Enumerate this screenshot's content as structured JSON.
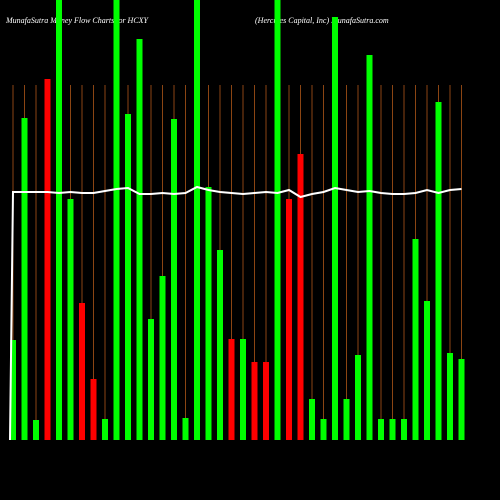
{
  "chart_data": {
    "type": "bar",
    "title": "MunafaSutra  Money Flow  Charts for HCXY",
    "subtitle": "(Hercules Capital,  Inc) MunafaSutra.com",
    "categories": [
      null,
      null,
      null,
      null,
      null,
      null,
      null,
      null,
      null,
      null,
      null,
      null,
      null,
      null,
      null,
      null,
      null,
      null,
      null,
      null,
      null,
      null,
      null,
      null,
      null,
      null,
      null,
      null,
      null,
      null,
      null,
      null,
      null,
      null,
      null,
      null,
      null,
      null,
      null,
      null
    ],
    "values": [
      100,
      322,
      20,
      361,
      440,
      241,
      137,
      61,
      21,
      440,
      326,
      401,
      121,
      164,
      321,
      22,
      440,
      253,
      190,
      101,
      101,
      78,
      78,
      440,
      241,
      286,
      41,
      21,
      423,
      41,
      85,
      385,
      21,
      21,
      21,
      201,
      139,
      338,
      87,
      81
    ],
    "colors": [
      "#00ff00",
      "#00ff00",
      "#00ff00",
      "#ff0000",
      "#00ff00",
      "#00ff00",
      "#ff0000",
      "#ff0000",
      "#00ff00",
      "#00ff00",
      "#00ff00",
      "#00ff00",
      "#00ff00",
      "#00ff00",
      "#00ff00",
      "#00ff00",
      "#00ff00",
      "#00ff00",
      "#00ff00",
      "#ff0000",
      "#00ff00",
      "#ff0000",
      "#ff0000",
      "#00ff00",
      "#ff0000",
      "#ff0000",
      "#00ff00",
      "#00ff00",
      "#00ff00",
      "#00ff00",
      "#00ff00",
      "#00ff00",
      "#00ff00",
      "#00ff00",
      "#00ff00",
      "#00ff00",
      "#00ff00",
      "#00ff00",
      "#00ff00",
      "#00ff00"
    ],
    "line": {
      "color": "#ffffff",
      "values": [
        248,
        248,
        248,
        248,
        247,
        248,
        247,
        247,
        249,
        251,
        252,
        246,
        246,
        247,
        246,
        247,
        253,
        250,
        248,
        247,
        246,
        247,
        248,
        247,
        250,
        243,
        246,
        248,
        252,
        250,
        248,
        249,
        247,
        246,
        246,
        247,
        250,
        247,
        250,
        251
      ]
    },
    "ylim": [
      0,
      440
    ],
    "guide_color": "#8b4513"
  }
}
